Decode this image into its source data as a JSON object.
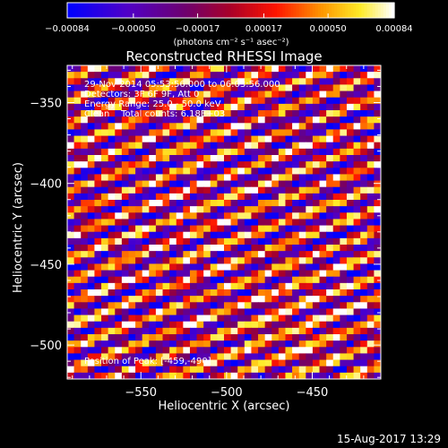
{
  "chart_data": {
    "type": "heatmap",
    "title": "Reconstructed RHESSI Image",
    "xlabel": "Heliocentric X (arcsec)",
    "ylabel": "Heliocentric Y (arcsec)",
    "xlim": [
      -593,
      -410
    ],
    "ylim": [
      -521,
      -327
    ],
    "x_ticks": [
      -550,
      -500,
      -450
    ],
    "x_tick_labels": [
      "−550",
      "−500",
      "−450"
    ],
    "y_ticks": [
      -350,
      -400,
      -450,
      -500
    ],
    "y_tick_labels": [
      "−350",
      "−400",
      "−450",
      "−500"
    ],
    "pixel_size_arcsec": 4,
    "colorbar": {
      "range": [
        -0.00084,
        0.00084
      ],
      "tick_values": [
        -0.00084,
        -0.0005,
        -0.00017,
        0.00017,
        0.0005,
        0.00084
      ],
      "tick_labels": [
        "−0.00084",
        "−0.00050",
        "−0.00017",
        "0.00017",
        "0.00050",
        "0.00084"
      ],
      "units_label": "(photons cm⁻² s⁻¹ asec⁻²)",
      "colormap": "blue-purple-red-yellow-white"
    },
    "annotations": {
      "time_range": "29-Nov-2014 05:53:56.000 to 06:03:56.000",
      "detectors": "Detectors: 3F 6F 9F, Att 0",
      "energy_range": "Energy Range: 25.0 - 50.0 keV",
      "clean": "Clean    Total counts: 6.18E+03",
      "peak_position": "Position of Peak: [-459,-490]"
    },
    "peak": {
      "x": -459,
      "y": -490
    },
    "stripe_pattern": {
      "orientation_deg": 22,
      "wavelength_arcsec": 13,
      "description": "periodic diagonal fringes of positive and negative flux"
    }
  },
  "footer": {
    "timestamp": "15-Aug-2017 13:29"
  },
  "colors": {
    "background": "#000000",
    "foreground": "#ffffff"
  }
}
